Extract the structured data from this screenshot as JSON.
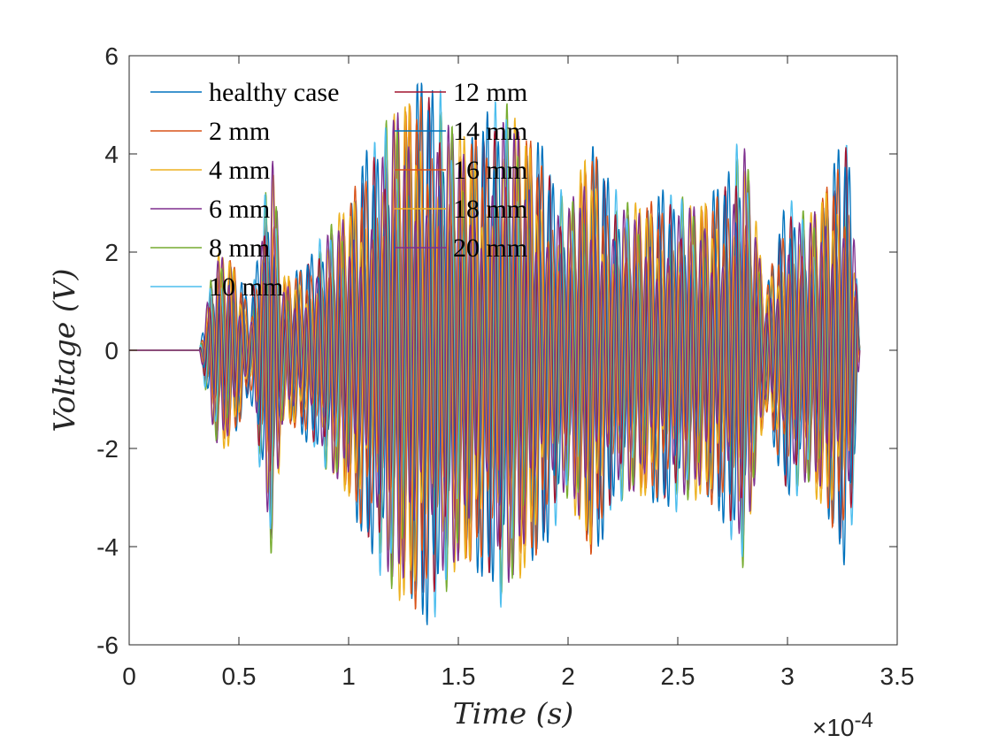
{
  "chart_data": {
    "type": "line",
    "xlabel": "Time (s)",
    "ylabel": "Voltage (V)",
    "xlim": [
      0,
      0.00035
    ],
    "ylim": [
      -6,
      6
    ],
    "x_exponent_label": "×10",
    "x_exponent_power": "-4",
    "xticks": [
      0,
      0.5,
      1,
      1.5,
      2,
      2.5,
      3,
      3.5
    ],
    "xtick_labels": [
      "0",
      "0.5",
      "1",
      "1.5",
      "2",
      "2.5",
      "3",
      "3.5"
    ],
    "yticks": [
      -6,
      -4,
      -2,
      0,
      2,
      4,
      6
    ],
    "ytick_labels": [
      "-6",
      "-4",
      "-2",
      "0",
      "2",
      "4",
      "6"
    ],
    "grid": false,
    "legend_position": "top-left",
    "legend_columns": 2,
    "signal_start": 3.2e-05,
    "signal_end": 0.000333,
    "carrier_frequency_hz": 200000,
    "envelope": {
      "x": [
        3.2e-05,
        3.6e-05,
        4e-05,
        4.5e-05,
        5e-05,
        5.5e-05,
        6e-05,
        6.5e-05,
        7e-05,
        7.8e-05,
        8.5e-05,
        9e-05,
        0.0001,
        0.00011,
        0.00012,
        0.00013,
        0.00014,
        0.00015,
        0.00016,
        0.00017,
        0.00018,
        0.00019,
        0.0002,
        0.00021,
        0.00022,
        0.00023,
        0.00024,
        0.00025,
        0.00026,
        0.00027,
        0.00028,
        0.00029,
        0.0003,
        0.00031,
        0.00032,
        0.000327,
        0.00033,
        0.000333
      ],
      "y": [
        0,
        1.2,
        2.0,
        2.0,
        1.5,
        0.8,
        2.5,
        4.3,
        1.5,
        1.6,
        2.0,
        2.5,
        3.0,
        4.0,
        5.0,
        5.2,
        5.3,
        4.5,
        4.3,
        5.2,
        4.5,
        3.8,
        3.0,
        4.2,
        3.2,
        3.0,
        3.0,
        3.2,
        3.0,
        3.2,
        4.5,
        1.2,
        3.0,
        2.8,
        3.5,
        4.3,
        3.2,
        0
      ]
    },
    "series": [
      {
        "name": "healthy case",
        "color": "#0072BD",
        "scale": 1.07
      },
      {
        "name": "2 mm",
        "color": "#D95319",
        "scale": 1.02
      },
      {
        "name": "4 mm",
        "color": "#EDB120",
        "scale": 0.99
      },
      {
        "name": "6 mm",
        "color": "#7E2F8E",
        "scale": 0.96
      },
      {
        "name": "8 mm",
        "color": "#77AC30",
        "scale": 1.0
      },
      {
        "name": "10 mm",
        "color": "#4DBEEE",
        "scale": 1.04
      },
      {
        "name": "12 mm",
        "color": "#A2142F",
        "scale": 0.98
      },
      {
        "name": "14 mm",
        "color": "#0072BD",
        "scale": 1.05
      },
      {
        "name": "16 mm",
        "color": "#D95319",
        "scale": 0.97
      },
      {
        "name": "18 mm",
        "color": "#EDB120",
        "scale": 1.01
      },
      {
        "name": "20 mm",
        "color": "#7E2F8E",
        "scale": 0.95
      }
    ]
  }
}
